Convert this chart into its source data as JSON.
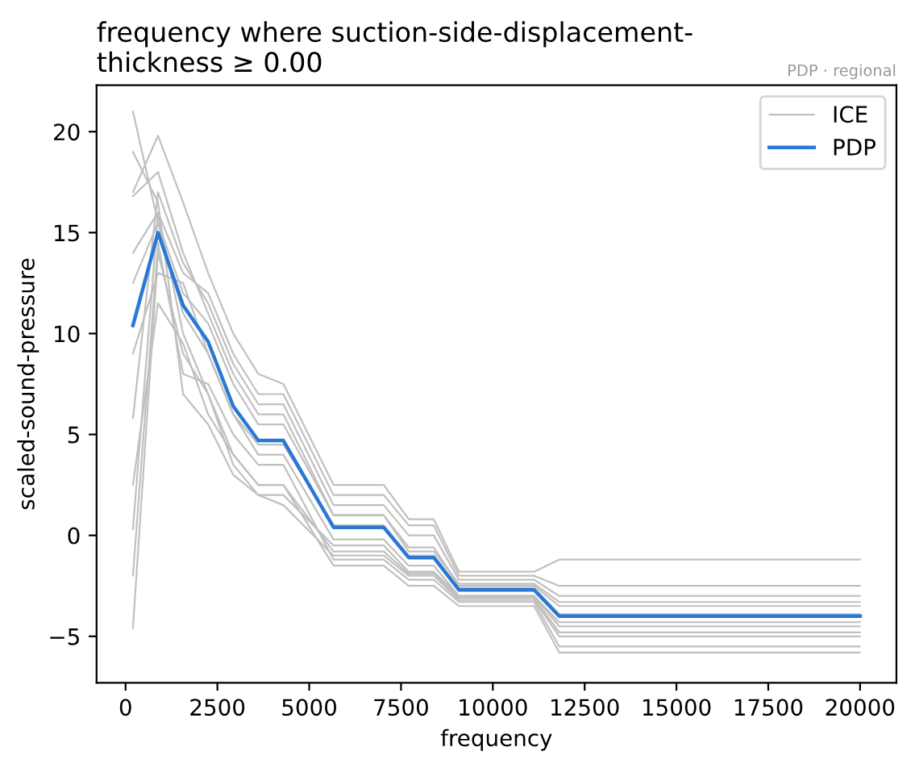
{
  "chart_data": {
    "type": "line",
    "title": "frequency where suction-side-displacement-\nthickness ≥ 0.00",
    "xlabel": "frequency",
    "ylabel": "scaled-sound-pressure",
    "annotations": [
      "PDP · regional"
    ],
    "x": [
      200,
      883,
      1566,
      2248,
      2931,
      3614,
      4297,
      5662,
      7028,
      7710,
      8393,
      9076,
      11124,
      11807,
      20000
    ],
    "xlim": [
      -790,
      20990
    ],
    "xticks": [
      0,
      2500,
      5000,
      7500,
      10000,
      12500,
      15000,
      17500,
      20000
    ],
    "ylim": [
      -7.3,
      22.3
    ],
    "yticks": [
      {
        "value": -5,
        "label": "−5"
      },
      0,
      5,
      10,
      15,
      20
    ],
    "grid": false,
    "legend": "top right",
    "marker": "none",
    "line_style": "solid",
    "series": [
      {
        "name": "ICE",
        "color": "#c0c0c0",
        "values": [
          21.0,
          15.5,
          11.0,
          9.0,
          6.0,
          4.5,
          4.5,
          0.5,
          0.5,
          -1.0,
          -1.0,
          -2.6,
          -2.6,
          -3.9,
          -3.9
        ]
      },
      {
        "color": "#c0c0c0",
        "values": [
          17.0,
          19.8,
          16.5,
          13.0,
          10.0,
          8.0,
          7.5,
          2.5,
          2.5,
          0.8,
          0.8,
          -1.8,
          -1.8,
          -1.2,
          -1.2
        ]
      },
      {
        "color": "#c0c0c0",
        "values": [
          -4.6,
          14.0,
          9.0,
          7.0,
          4.0,
          2.5,
          2.5,
          -1.5,
          -1.5,
          -2.5,
          -2.5,
          -3.5,
          -3.5,
          -5.8,
          -5.8
        ]
      },
      {
        "color": "#c0c0c0",
        "values": [
          5.8,
          17.0,
          13.5,
          11.5,
          8.5,
          6.5,
          6.5,
          1.5,
          1.5,
          0.0,
          0.0,
          -2.2,
          -2.2,
          -3.0,
          -3.0
        ]
      },
      {
        "color": "#c0c0c0",
        "values": [
          0.3,
          16.0,
          10.0,
          7.0,
          3.5,
          2.0,
          1.5,
          -1.0,
          -1.0,
          -2.0,
          -2.0,
          -3.2,
          -3.2,
          -5.0,
          -5.0
        ]
      },
      {
        "color": "#c0c0c0",
        "values": [
          19.0,
          16.5,
          7.0,
          5.5,
          3.0,
          2.0,
          2.0,
          -0.5,
          -0.5,
          -1.8,
          -1.8,
          -3.0,
          -3.0,
          -4.5,
          -4.5
        ]
      },
      {
        "color": "#c0c0c0",
        "values": [
          12.5,
          15.5,
          12.0,
          10.5,
          7.5,
          5.5,
          5.5,
          1.0,
          1.0,
          -0.6,
          -0.6,
          -2.5,
          -2.5,
          -3.5,
          -3.5
        ]
      },
      {
        "color": "#c0c0c0",
        "values": [
          9.0,
          13.0,
          12.5,
          9.0,
          6.0,
          4.0,
          4.0,
          -0.2,
          -0.2,
          -1.5,
          -1.5,
          -3.0,
          -3.0,
          -4.3,
          -4.3
        ]
      },
      {
        "color": "#c0c0c0",
        "values": [
          16.8,
          18.0,
          14.0,
          11.0,
          8.0,
          6.0,
          6.0,
          1.0,
          1.0,
          -0.8,
          -0.8,
          -2.4,
          -2.4,
          -3.3,
          -3.3
        ]
      },
      {
        "color": "#c0c0c0",
        "values": [
          2.5,
          11.5,
          9.5,
          6.0,
          4.0,
          2.5,
          2.5,
          -0.8,
          -0.8,
          -1.9,
          -1.9,
          -3.1,
          -3.1,
          -4.8,
          -4.8
        ]
      },
      {
        "color": "#c0c0c0",
        "values": [
          14.0,
          16.0,
          13.0,
          12.0,
          9.0,
          7.0,
          7.0,
          2.0,
          2.0,
          0.5,
          0.5,
          -2.0,
          -2.0,
          -2.5,
          -2.5
        ]
      },
      {
        "color": "#c0c0c0",
        "values": [
          -2.0,
          14.5,
          8.0,
          7.5,
          5.0,
          3.5,
          3.5,
          -1.2,
          -1.2,
          -2.2,
          -2.2,
          -3.3,
          -3.3,
          -5.5,
          -5.5
        ]
      },
      {
        "name": "PDP",
        "color": "#2a78d6",
        "values": [
          10.4,
          15.0,
          11.4,
          9.6,
          6.4,
          4.7,
          4.7,
          0.4,
          0.4,
          -1.1,
          -1.1,
          -2.7,
          -2.7,
          -4.0,
          -4.0
        ]
      }
    ]
  }
}
